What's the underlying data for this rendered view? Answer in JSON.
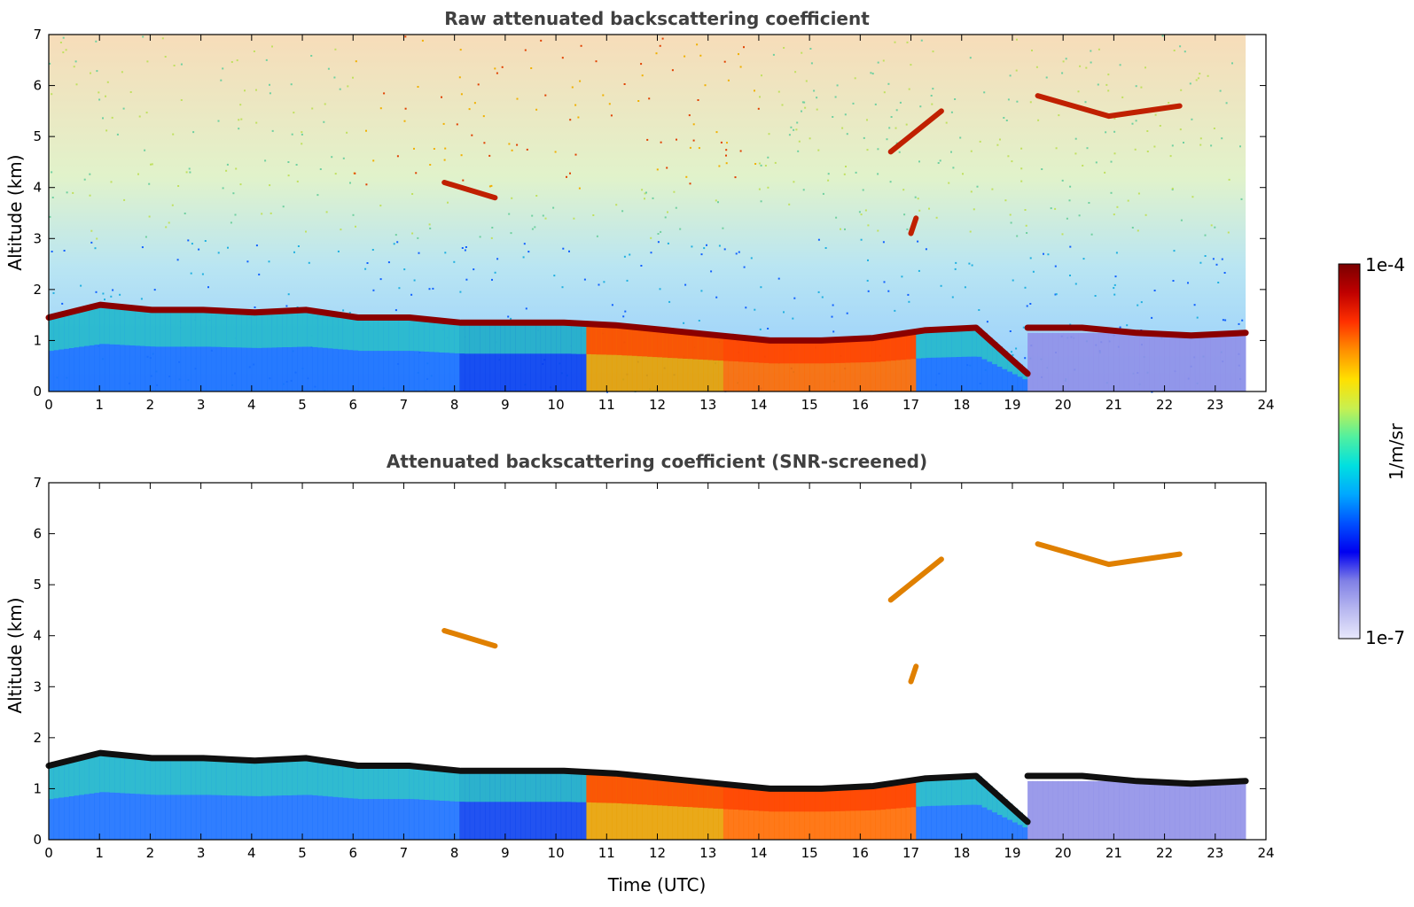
{
  "chart_data": [
    {
      "type": "heatmap",
      "title": "Raw attenuated backscattering coefficient",
      "xlabel": "",
      "ylabel": "Altitude (km)",
      "xlim": [
        0,
        24
      ],
      "ylim": [
        0,
        7
      ],
      "xticks": [
        "0",
        "1",
        "2",
        "3",
        "4",
        "5",
        "6",
        "7",
        "8",
        "9",
        "10",
        "11",
        "12",
        "13",
        "14",
        "15",
        "16",
        "17",
        "18",
        "19",
        "20",
        "21",
        "22",
        "23",
        "24"
      ],
      "yticks": [
        "0",
        "1",
        "2",
        "3",
        "4",
        "5",
        "6",
        "7"
      ],
      "data_end_time": 23.6,
      "layers": [
        {
          "name": "boundary-layer top",
          "from": 0,
          "to": 19.3,
          "altitude_km": [
            1.45,
            1.7,
            1.6,
            1.6,
            1.55,
            1.6,
            1.45,
            1.45,
            1.35,
            1.35,
            1.35,
            1.3,
            1.2,
            1.1,
            1.0,
            1.0,
            1.05,
            1.2,
            1.25,
            0.35
          ]
        },
        {
          "name": "residual layer",
          "from": 19.3,
          "to": 23.6,
          "altitude_km": [
            1.25,
            1.25,
            1.15,
            1.1,
            1.15
          ]
        },
        {
          "name": "cloud",
          "from": 7.8,
          "to": 8.8,
          "altitude_km": [
            4.1,
            3.8
          ]
        },
        {
          "name": "cloud",
          "from": 16.6,
          "to": 17.6,
          "altitude_km": [
            4.7,
            5.5
          ]
        },
        {
          "name": "cloud",
          "from": 17.0,
          "to": 17.1,
          "altitude_km": [
            3.1
          ]
        },
        {
          "name": "cloud",
          "from": 19.5,
          "to": 22.3,
          "altitude_km": [
            5.8,
            5.4,
            5.6
          ]
        }
      ]
    },
    {
      "type": "heatmap",
      "title": "Attenuated backscattering coefficient (SNR-screened)",
      "xlabel": "Time (UTC)",
      "ylabel": "Altitude (km)",
      "xlim": [
        0,
        24
      ],
      "ylim": [
        0,
        7
      ],
      "xticks": [
        "0",
        "1",
        "2",
        "3",
        "4",
        "5",
        "6",
        "7",
        "8",
        "9",
        "10",
        "11",
        "12",
        "13",
        "14",
        "15",
        "16",
        "17",
        "18",
        "19",
        "20",
        "21",
        "22",
        "23",
        "24"
      ],
      "yticks": [
        "0",
        "1",
        "2",
        "3",
        "4",
        "5",
        "6",
        "7"
      ],
      "screened": true
    }
  ],
  "colorbar": {
    "label": "1/m/sr",
    "max_label": "1e-4",
    "min_label": "1e-7",
    "colors": [
      "#e8e8fb",
      "#b8b8f0",
      "#8080e6",
      "#0000f0",
      "#0050ff",
      "#00a8ff",
      "#00e0e0",
      "#50f0a0",
      "#c8f050",
      "#ffe000",
      "#ff9000",
      "#ff3000",
      "#c00000",
      "#7a0000"
    ]
  }
}
